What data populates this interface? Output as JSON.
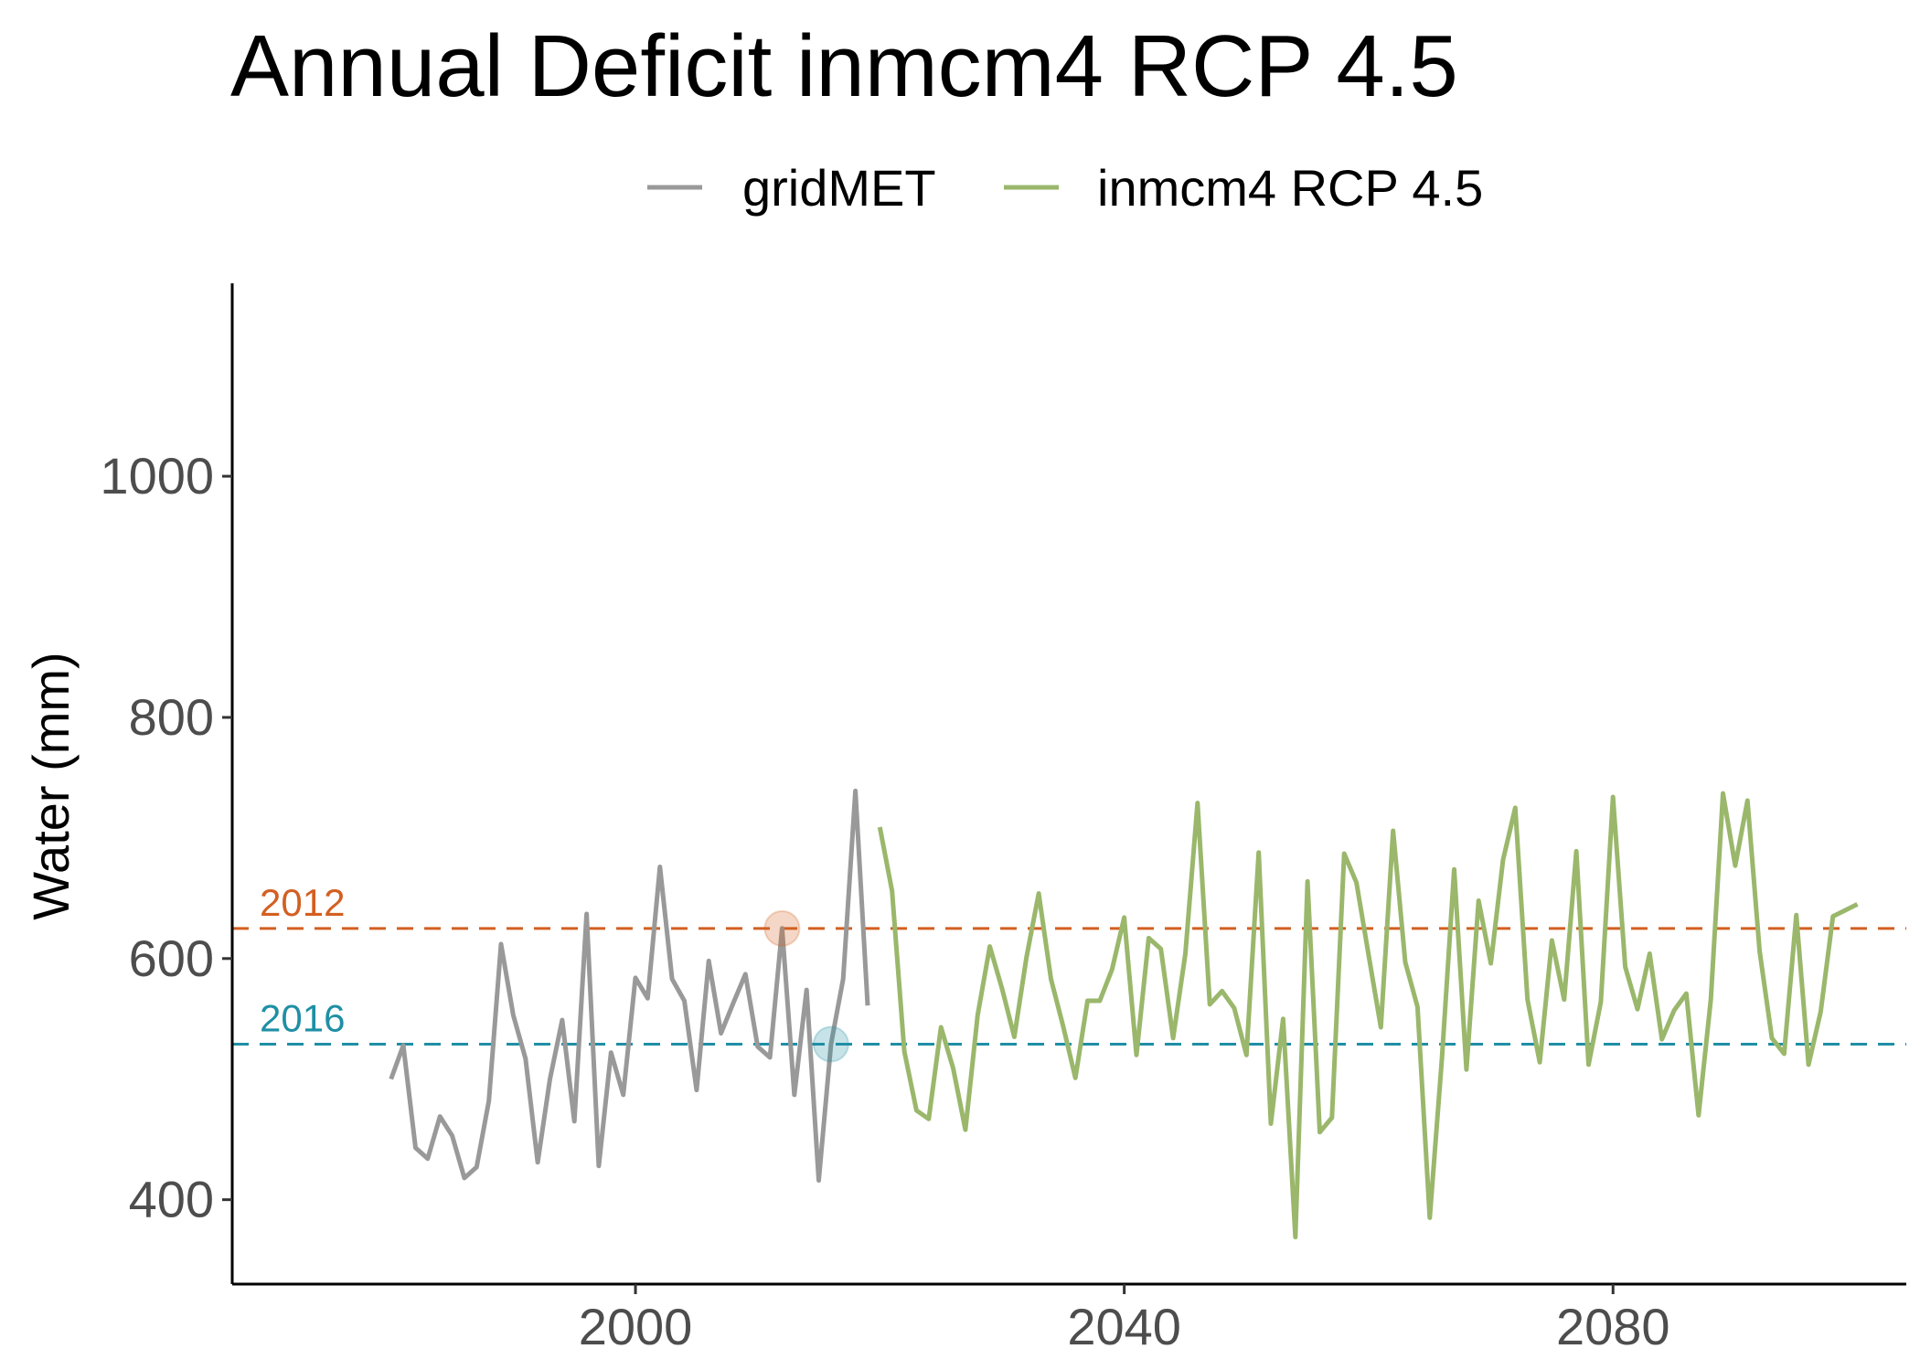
{
  "chart_data": {
    "type": "line",
    "title": "Annual Deficit inmcm4 RCP 4.5",
    "xlabel": "",
    "ylabel": "Water (mm)",
    "xlim": [
      1967,
      2104
    ],
    "ylim": [
      330,
      1160
    ],
    "x_ticks": [
      2000,
      2040,
      2080
    ],
    "y_ticks": [
      400,
      600,
      800,
      1000
    ],
    "grid": false,
    "legend_position": "top",
    "series": [
      {
        "name": "gridMET",
        "color": "#999999",
        "x": [
          1980,
          1981,
          1982,
          1983,
          1984,
          1985,
          1986,
          1987,
          1988,
          1989,
          1990,
          1991,
          1992,
          1993,
          1994,
          1995,
          1996,
          1997,
          1998,
          1999,
          2000,
          2001,
          2002,
          2003,
          2004,
          2005,
          2006,
          2007,
          2008,
          2009,
          2010,
          2011,
          2012,
          2013,
          2014,
          2015,
          2016,
          2017,
          2018,
          2019
        ],
        "values": [
          500,
          528,
          443,
          434,
          469,
          453,
          418,
          427,
          482,
          612,
          553,
          517,
          431,
          500,
          549,
          465,
          637,
          428,
          522,
          487,
          584,
          567,
          676,
          583,
          565,
          491,
          598,
          538,
          563,
          587,
          527,
          518,
          625,
          487,
          574,
          416,
          529,
          583,
          739,
          561
        ]
      },
      {
        "name": "inmcm4 RCP 4.5",
        "color": "#9ab76b",
        "x": [
          2020,
          2021,
          2022,
          2023,
          2024,
          2025,
          2026,
          2027,
          2028,
          2029,
          2030,
          2031,
          2032,
          2033,
          2034,
          2035,
          2036,
          2037,
          2038,
          2039,
          2040,
          2041,
          2042,
          2043,
          2044,
          2045,
          2046,
          2047,
          2048,
          2049,
          2050,
          2051,
          2052,
          2053,
          2054,
          2055,
          2056,
          2057,
          2058,
          2059,
          2060,
          2061,
          2062,
          2063,
          2064,
          2065,
          2066,
          2067,
          2068,
          2069,
          2070,
          2071,
          2072,
          2073,
          2074,
          2075,
          2076,
          2077,
          2078,
          2079,
          2080,
          2081,
          2082,
          2083,
          2084,
          2085,
          2086,
          2087,
          2088,
          2089,
          2090,
          2091,
          2092,
          2093,
          2094,
          2095,
          2096,
          2097,
          2098,
          2099,
          2100
        ],
        "values": [
          709,
          656,
          523,
          474,
          467,
          543,
          509,
          458,
          553,
          610,
          575,
          535,
          601,
          654,
          583,
          544,
          501,
          565,
          565,
          591,
          634,
          520,
          617,
          608,
          534,
          604,
          729,
          562,
          573,
          559,
          520,
          688,
          463,
          550,
          369,
          664,
          456,
          468,
          687,
          663,
          603,
          543,
          706,
          597,
          560,
          385,
          517,
          674,
          508,
          648,
          596,
          682,
          725,
          566,
          514,
          615,
          566,
          689,
          512,
          564,
          734,
          593,
          558,
          604,
          533,
          557,
          571,
          470,
          566,
          737,
          677,
          731,
          606,
          534,
          521,
          636,
          512,
          556,
          635,
          640,
          645
        ]
      }
    ],
    "reference_lines": [
      {
        "label": "2012",
        "value": 625,
        "x": 2012,
        "color": "#d35f21"
      },
      {
        "label": "2016",
        "value": 529,
        "x": 2016,
        "color": "#1f8fa5"
      }
    ]
  }
}
